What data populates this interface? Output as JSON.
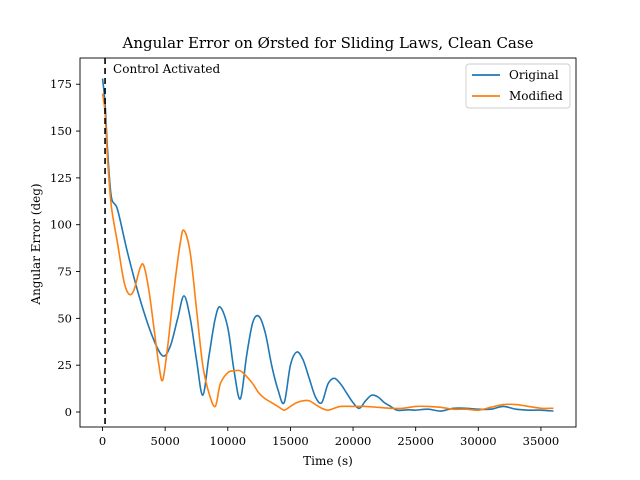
{
  "chart_data": {
    "type": "line",
    "title": "Angular Error on Ørsted for Sliding Laws, Clean Case",
    "xlabel": "Time (s)",
    "ylabel": "Angular Error (deg)",
    "xlim": [
      -1800,
      37800
    ],
    "ylim": [
      -8,
      189
    ],
    "xticks": [
      0,
      5000,
      10000,
      15000,
      20000,
      25000,
      30000,
      35000
    ],
    "yticks": [
      0,
      25,
      50,
      75,
      100,
      125,
      150,
      175
    ],
    "grid": false,
    "legend_position": "top-right",
    "annotation": {
      "text": "Control Activated",
      "x": 200
    },
    "series": [
      {
        "name": "Original",
        "color": "#1f77b4",
        "x": [
          0,
          200,
          400,
          700,
          1200,
          2000,
          3000,
          4000,
          4800,
          5400,
          6000,
          6500,
          7000,
          7500,
          8000,
          8500,
          9000,
          9400,
          10000,
          10500,
          11000,
          11500,
          12000,
          12500,
          13000,
          13500,
          14000,
          14500,
          15000,
          15500,
          16000,
          16500,
          17000,
          17500,
          18000,
          18500,
          19000,
          19500,
          20000,
          20500,
          21000,
          21500,
          22000,
          22500,
          23000,
          23500,
          24000,
          24500,
          25000,
          26000,
          27000,
          28000,
          29000,
          30000,
          31000,
          32000,
          33000,
          34000,
          35000,
          36000
        ],
        "y": [
          178,
          165,
          140,
          115,
          108,
          85,
          60,
          40,
          30,
          35,
          50,
          62,
          50,
          28,
          9,
          30,
          50,
          56,
          45,
          22,
          7,
          30,
          48,
          51,
          42,
          25,
          12,
          5,
          25,
          32,
          28,
          18,
          8,
          5,
          15,
          18,
          15,
          10,
          5,
          2,
          6,
          9,
          8,
          5,
          3,
          1,
          1,
          1.2,
          1,
          1.5,
          0.5,
          2,
          2,
          1.5,
          1.5,
          3,
          1.5,
          1,
          1,
          0.5
        ]
      },
      {
        "name": "Modified",
        "color": "#ff7f0e",
        "x": [
          0,
          200,
          400,
          700,
          1200,
          1700,
          2100,
          2500,
          3000,
          3300,
          3700,
          4100,
          4500,
          4800,
          5200,
          5700,
          6200,
          6500,
          7000,
          7500,
          8000,
          8500,
          9000,
          9400,
          10000,
          10500,
          11000,
          11500,
          12000,
          12500,
          13000,
          13500,
          14000,
          14500,
          15000,
          15500,
          16000,
          16500,
          17000,
          17500,
          18000,
          18500,
          19000,
          20000,
          21000,
          22000,
          23000,
          24000,
          25000,
          26000,
          27000,
          28000,
          29000,
          30000,
          31000,
          32000,
          33000,
          34000,
          35000,
          36000
        ],
        "y": [
          170,
          160,
          135,
          110,
          90,
          70,
          63,
          65,
          77,
          78,
          65,
          45,
          25,
          17,
          35,
          65,
          90,
          97,
          85,
          55,
          25,
          10,
          3,
          15,
          21,
          22,
          22,
          19,
          15,
          10,
          7,
          5,
          3,
          1,
          3,
          5,
          6,
          6,
          4,
          2,
          1,
          2,
          3,
          3,
          3,
          2.5,
          2,
          2,
          3,
          3,
          2.5,
          1.5,
          1.5,
          1,
          2.5,
          4,
          4,
          3,
          2,
          2
        ]
      }
    ]
  }
}
